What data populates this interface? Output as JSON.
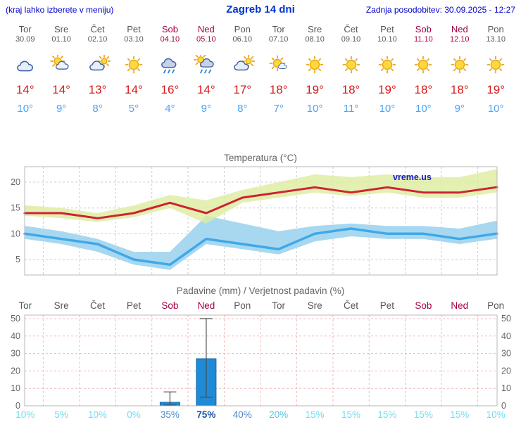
{
  "header": {
    "left_note": "(kraj lahko izberete v meniju)",
    "title": "Zagreb 14 dni",
    "last_update": "Zadnja posodobitev: 30.09.2025 - 12:27"
  },
  "days": [
    {
      "name": "Tor",
      "date": "30.09",
      "weekend": false,
      "icon": "cloudy",
      "high": 14,
      "low": 10
    },
    {
      "name": "Sre",
      "date": "01.10",
      "weekend": false,
      "icon": "partly-cloudy",
      "high": 14,
      "low": 9
    },
    {
      "name": "Čet",
      "date": "02.10",
      "weekend": false,
      "icon": "mostly-cloudy",
      "high": 13,
      "low": 8
    },
    {
      "name": "Pet",
      "date": "03.10",
      "weekend": false,
      "icon": "sunny",
      "high": 14,
      "low": 5
    },
    {
      "name": "Sob",
      "date": "04.10",
      "weekend": true,
      "icon": "rain",
      "high": 16,
      "low": 4
    },
    {
      "name": "Ned",
      "date": "05.10",
      "weekend": true,
      "icon": "rain-sun",
      "high": 14,
      "low": 9
    },
    {
      "name": "Pon",
      "date": "06.10",
      "weekend": false,
      "icon": "mostly-cloudy",
      "high": 17,
      "low": 8
    },
    {
      "name": "Tor",
      "date": "07.10",
      "weekend": false,
      "icon": "partly-sunny",
      "high": 18,
      "low": 7
    },
    {
      "name": "Sre",
      "date": "08.10",
      "weekend": false,
      "icon": "sunny",
      "high": 19,
      "low": 10
    },
    {
      "name": "Čet",
      "date": "09.10",
      "weekend": false,
      "icon": "sunny",
      "high": 18,
      "low": 11
    },
    {
      "name": "Pet",
      "date": "10.10",
      "weekend": false,
      "icon": "sunny",
      "high": 19,
      "low": 10
    },
    {
      "name": "Sob",
      "date": "11.10",
      "weekend": true,
      "icon": "sunny",
      "high": 18,
      "low": 10
    },
    {
      "name": "Ned",
      "date": "12.10",
      "weekend": true,
      "icon": "sunny",
      "high": 18,
      "low": 9
    },
    {
      "name": "Pon",
      "date": "13.10",
      "weekend": false,
      "icon": "sunny",
      "high": 19,
      "low": 10
    }
  ],
  "chart_data": [
    {
      "type": "line",
      "title": "Temperatura (°C)",
      "watermark": "vreme.us",
      "categories": [
        "30.09",
        "01.10",
        "02.10",
        "03.10",
        "04.10",
        "05.10",
        "06.10",
        "07.10",
        "08.10",
        "09.10",
        "10.10",
        "11.10",
        "12.10",
        "13.10"
      ],
      "ylim": [
        2,
        23
      ],
      "yticks": [
        5,
        10,
        15,
        20
      ],
      "grid": true,
      "series": [
        {
          "name": "max-temp",
          "color": "#cf2233",
          "width": 3,
          "values": [
            14,
            14,
            13,
            14,
            16,
            14,
            17,
            18,
            19,
            18,
            19,
            18,
            18,
            19
          ]
        },
        {
          "name": "min-temp",
          "color": "#3fa8e8",
          "width": 3.5,
          "values": [
            10,
            9,
            8,
            5,
            4,
            9,
            8,
            7,
            10,
            11,
            10,
            10,
            9,
            10
          ]
        }
      ],
      "bands": [
        {
          "name": "min-temp-range",
          "color": "#a8d8f0",
          "opacity": 1,
          "upper": [
            11.5,
            10.5,
            9,
            6.5,
            6.5,
            13.5,
            12,
            10.5,
            11.5,
            12,
            11.5,
            11.5,
            11,
            12.5
          ],
          "lower": [
            9,
            8,
            6.5,
            4,
            3,
            8,
            7,
            6,
            8.5,
            9.5,
            9,
            9,
            8,
            9
          ]
        },
        {
          "name": "max-temp-range",
          "color": "#dcec9e",
          "opacity": 0.8,
          "upper": [
            15.5,
            15,
            14,
            15.5,
            17.5,
            16.5,
            18.5,
            20,
            21.5,
            21,
            21.5,
            21,
            21,
            22.5
          ],
          "lower": [
            13.5,
            13,
            12.3,
            13.2,
            15,
            12,
            16,
            17,
            18,
            17.3,
            18,
            17,
            17,
            18
          ]
        }
      ]
    },
    {
      "type": "bar",
      "title": "Padavine (mm) / Verjetnost padavin (%)",
      "categories": [
        "Tor",
        "Sre",
        "Čet",
        "Pet",
        "Sob",
        "Ned",
        "Pon",
        "Tor",
        "Sre",
        "Čet",
        "Pet",
        "Sob",
        "Ned",
        "Pon"
      ],
      "values": [
        0,
        0,
        0,
        0,
        2,
        27,
        0,
        0,
        0,
        0,
        0,
        0,
        0,
        0
      ],
      "ranges": [
        null,
        null,
        null,
        null,
        [
          0.5,
          8
        ],
        [
          5,
          50
        ],
        null,
        null,
        null,
        null,
        null,
        null,
        null,
        null
      ],
      "probabilities": [
        10,
        5,
        10,
        0,
        35,
        75,
        40,
        20,
        15,
        15,
        15,
        15,
        15,
        10
      ],
      "ylim": [
        0,
        52
      ],
      "yticks": [
        0,
        10,
        20,
        30,
        40,
        50
      ],
      "grid": true
    }
  ],
  "palette": {
    "header_blue": "#0000cc",
    "title_blue": "#0033cc",
    "weekend_red": "#a30046",
    "weekday_gray": "#555555",
    "high_temp_red": "#d41a1a",
    "low_temp_blue": "#4aa4f5",
    "temp_max_line": "#cf2233",
    "temp_min_line": "#3fa8e8",
    "temp_max_band": "#dcec9e",
    "temp_min_band": "#a8d8f0",
    "bar_blue": "#1f8ad6",
    "bar_outline": "#1468ab",
    "prob_very_low": "#73dcec",
    "prob_low": "#55c4e0",
    "prob_mid": "#4d87c7",
    "prob_high": "#1c4fa8",
    "watermark_blue": "#1a1acc"
  }
}
